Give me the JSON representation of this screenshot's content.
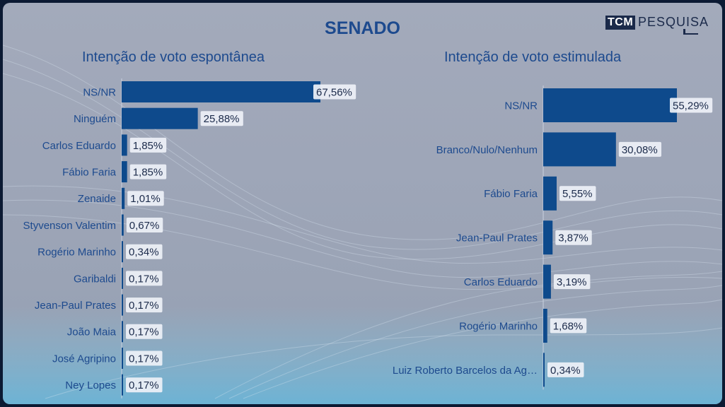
{
  "header": {
    "title": "SENADO",
    "logo_tcm": "TCM",
    "logo_pesquisa": "PESQUISA"
  },
  "colors": {
    "bar": "#0e4a8c",
    "label_box": "#eef1f7",
    "text": "#1d4a8e"
  },
  "chart_data": [
    {
      "type": "bar",
      "orientation": "horizontal",
      "title": "Intenção de voto espontânea",
      "categories": [
        "NS/NR",
        "Ninguém",
        "Carlos Eduardo",
        "Fábio Faria",
        "Zenaide",
        "Styvenson Valentim",
        "Rogério Marinho",
        "Garibaldi",
        "Jean-Paul Prates",
        "João Maia",
        "José Agripino",
        "Ney Lopes"
      ],
      "values": [
        67.56,
        25.88,
        1.85,
        1.85,
        1.01,
        0.67,
        0.34,
        0.17,
        0.17,
        0.17,
        0.17,
        0.17
      ],
      "value_labels": [
        "67,56%",
        "25,88%",
        "1,85%",
        "1,85%",
        "1,01%",
        "0,67%",
        "0,34%",
        "0,17%",
        "0,17%",
        "0,17%",
        "0,17%",
        "0,17%"
      ]
    },
    {
      "type": "bar",
      "orientation": "horizontal",
      "title": "Intenção de voto estimulada",
      "categories": [
        "NS/NR",
        "Branco/Nulo/Nenhum",
        "Fábio Faria",
        "Jean-Paul Prates",
        "Carlos Eduardo",
        "Rogério Marinho",
        "Luiz Roberto Barcelos da Ag…"
      ],
      "values": [
        55.29,
        30.08,
        5.55,
        3.87,
        3.19,
        1.68,
        0.34
      ],
      "value_labels": [
        "55,29%",
        "30,08%",
        "5,55%",
        "3,87%",
        "3,19%",
        "1,68%",
        "0,34%"
      ]
    }
  ]
}
